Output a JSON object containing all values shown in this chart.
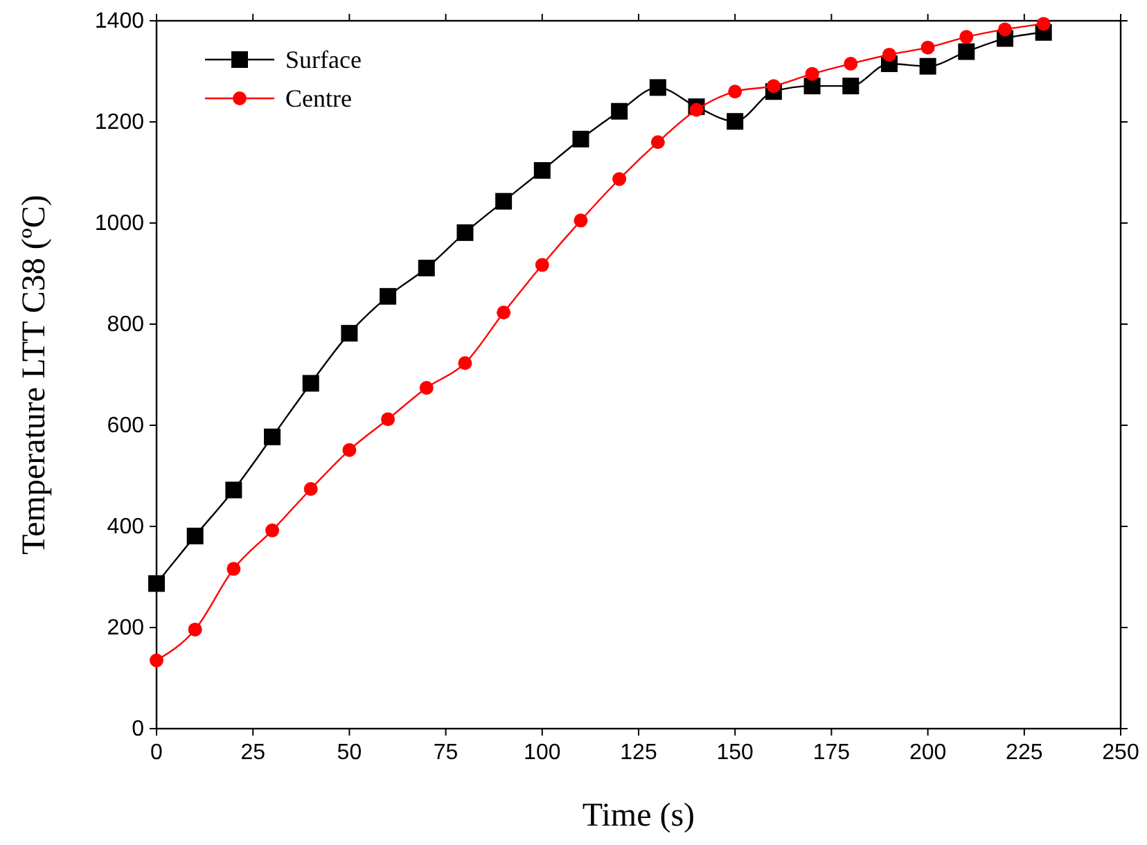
{
  "chart_data": {
    "type": "line",
    "xlabel": "Time (s)",
    "ylabel": "Temperature LTT C38 (ºC)",
    "x": [
      0,
      10,
      20,
      30,
      40,
      50,
      60,
      70,
      80,
      90,
      100,
      110,
      120,
      130,
      140,
      150,
      160,
      170,
      180,
      190,
      200,
      210,
      220,
      230
    ],
    "series": [
      {
        "name": "Surface",
        "color": "#000000",
        "marker": "square",
        "values": [
          287,
          381,
          472,
          577,
          683,
          782,
          855,
          911,
          981,
          1043,
          1104,
          1166,
          1221,
          1268,
          1230,
          1201,
          1260,
          1271,
          1271,
          1315,
          1310,
          1339,
          1365,
          1377
        ]
      },
      {
        "name": "Centre",
        "color": "#ff0000",
        "marker": "circle",
        "values": [
          135,
          196,
          316,
          392,
          474,
          551,
          612,
          674,
          723,
          823,
          917,
          1005,
          1087,
          1160,
          1224,
          1260,
          1271,
          1295,
          1315,
          1333,
          1347,
          1368,
          1383,
          1394
        ]
      }
    ],
    "xlim": [
      0,
      250
    ],
    "xticks": [
      0,
      25,
      50,
      75,
      100,
      125,
      150,
      175,
      200,
      225,
      250
    ],
    "ylim": [
      0,
      1400
    ],
    "yticks": [
      0,
      200,
      400,
      600,
      800,
      1000,
      1200,
      1400
    ],
    "grid": false,
    "legend": "top left",
    "line_style": "solid"
  }
}
